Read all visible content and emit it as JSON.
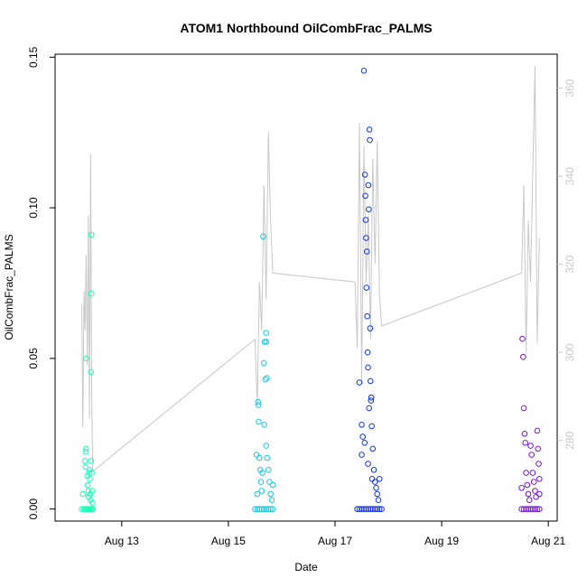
{
  "chart_data": {
    "type": "scatter",
    "title": "ATOM1 Northbound OilCombFrac_PALMS",
    "xlabel": "Date",
    "ylabel": "OilCombFrac_PALMS",
    "xlim": [
      "2008-08-11T18:00",
      "2008-08-21T04:00"
    ],
    "ylim": [
      -0.004,
      0.151
    ],
    "x_ticks": [
      "Aug 13",
      "Aug 15",
      "Aug 17",
      "Aug 19",
      "Aug 21"
    ],
    "y_ticks": [
      "0.00",
      "0.05",
      "0.10",
      "0.15"
    ],
    "y2_ticks": [
      "280",
      "300",
      "320",
      "340",
      "360"
    ],
    "y2lim": [
      261.7,
      367.7
    ],
    "grid": false,
    "series": [
      {
        "color": "#1BFFB8",
        "points": [
          [
            "2008-08-12T06:00",
            0.0
          ],
          [
            "2008-08-12T07:00",
            0.0
          ],
          [
            "2008-08-12T07:30",
            0.0
          ],
          [
            "2008-08-12T08:00",
            0.0
          ],
          [
            "2008-08-12T08:30",
            0.0
          ],
          [
            "2008-08-12T09:00",
            0.0
          ],
          [
            "2008-08-12T09:30",
            0.0
          ],
          [
            "2008-08-12T10:00",
            0.0
          ],
          [
            "2008-08-12T10:30",
            0.0
          ],
          [
            "2008-08-12T11:00",
            0.0
          ],
          [
            "2008-08-12T06:30",
            0.005
          ],
          [
            "2008-08-12T07:30",
            0.016
          ],
          [
            "2008-08-12T07:40",
            0.014
          ],
          [
            "2008-08-12T07:50",
            0.019
          ],
          [
            "2008-08-12T08:00",
            0.02
          ],
          [
            "2008-08-12T08:00",
            0.05
          ],
          [
            "2008-08-12T08:30",
            0.011
          ],
          [
            "2008-08-12T08:40",
            0.008
          ],
          [
            "2008-08-12T09:00",
            0.006
          ],
          [
            "2008-08-12T09:10",
            0.004
          ],
          [
            "2008-08-12T09:20",
            0.012
          ],
          [
            "2008-08-12T09:30",
            0.013
          ],
          [
            "2008-08-12T09:40",
            0.01
          ],
          [
            "2008-08-12T09:50",
            0.005
          ],
          [
            "2008-08-12T10:00",
            0.003
          ],
          [
            "2008-08-12T10:10",
            0.016
          ],
          [
            "2008-08-12T10:10",
            0.0455
          ],
          [
            "2008-08-12T10:20",
            0.0715
          ],
          [
            "2008-08-12T10:20",
            0.091
          ],
          [
            "2008-08-12T10:30",
            0.012
          ],
          [
            "2008-08-12T10:40",
            0.006
          ],
          [
            "2008-08-12T10:50",
            0.002
          ]
        ]
      },
      {
        "color": "#17C9EA",
        "points": [
          [
            "2008-08-15T12:00",
            0.0
          ],
          [
            "2008-08-15T13:00",
            0.0
          ],
          [
            "2008-08-15T14:00",
            0.0
          ],
          [
            "2008-08-15T15:00",
            0.0
          ],
          [
            "2008-08-15T16:00",
            0.0
          ],
          [
            "2008-08-15T17:00",
            0.0
          ],
          [
            "2008-08-15T18:00",
            0.0
          ],
          [
            "2008-08-15T19:00",
            0.0
          ],
          [
            "2008-08-15T20:00",
            0.0
          ],
          [
            "2008-08-15T12:40",
            0.018
          ],
          [
            "2008-08-15T13:00",
            0.005
          ],
          [
            "2008-08-15T13:20",
            0.0355
          ],
          [
            "2008-08-15T13:30",
            0.0345
          ],
          [
            "2008-08-15T13:40",
            0.029
          ],
          [
            "2008-08-15T14:00",
            0.017
          ],
          [
            "2008-08-15T14:20",
            0.013
          ],
          [
            "2008-08-15T14:40",
            0.009
          ],
          [
            "2008-08-15T15:00",
            0.006
          ],
          [
            "2008-08-15T15:20",
            0.012
          ],
          [
            "2008-08-15T15:40",
            0.0905
          ],
          [
            "2008-08-15T16:00",
            0.0485
          ],
          [
            "2008-08-15T16:10",
            0.028
          ],
          [
            "2008-08-15T16:20",
            0.0555
          ],
          [
            "2008-08-15T16:40",
            0.043
          ],
          [
            "2008-08-15T17:00",
            0.0585
          ],
          [
            "2008-08-15T17:00",
            0.0555
          ],
          [
            "2008-08-15T17:20",
            0.0435
          ],
          [
            "2008-08-15T17:00",
            0.021
          ],
          [
            "2008-08-15T17:30",
            0.017
          ],
          [
            "2008-08-15T18:00",
            0.013
          ],
          [
            "2008-08-15T18:30",
            0.009
          ],
          [
            "2008-08-15T19:00",
            0.005
          ],
          [
            "2008-08-15T19:30",
            0.003
          ],
          [
            "2008-08-15T20:00",
            0.008
          ]
        ]
      },
      {
        "color": "#1436E6",
        "points": [
          [
            "2008-08-17T10:00",
            0.0
          ],
          [
            "2008-08-17T11:00",
            0.0
          ],
          [
            "2008-08-17T12:00",
            0.0
          ],
          [
            "2008-08-17T13:00",
            0.0
          ],
          [
            "2008-08-17T14:00",
            0.0
          ],
          [
            "2008-08-17T15:00",
            0.0
          ],
          [
            "2008-08-17T16:00",
            0.0
          ],
          [
            "2008-08-17T17:00",
            0.0
          ],
          [
            "2008-08-17T18:00",
            0.0
          ],
          [
            "2008-08-17T19:00",
            0.0
          ],
          [
            "2008-08-17T20:00",
            0.0
          ],
          [
            "2008-08-17T21:00",
            0.0
          ],
          [
            "2008-08-17T11:00",
            0.042
          ],
          [
            "2008-08-17T12:00",
            0.028
          ],
          [
            "2008-08-17T12:30",
            0.024
          ],
          [
            "2008-08-17T13:00",
            0.1455
          ],
          [
            "2008-08-17T13:30",
            0.111
          ],
          [
            "2008-08-17T13:40",
            0.104
          ],
          [
            "2008-08-17T13:50",
            0.096
          ],
          [
            "2008-08-17T14:00",
            0.09
          ],
          [
            "2008-08-17T14:10",
            0.0735
          ],
          [
            "2008-08-17T14:20",
            0.0855
          ],
          [
            "2008-08-17T14:30",
            0.064
          ],
          [
            "2008-08-17T14:40",
            0.052
          ],
          [
            "2008-08-17T14:50",
            0.047
          ],
          [
            "2008-08-17T15:00",
            0.1075
          ],
          [
            "2008-08-17T15:10",
            0.0995
          ],
          [
            "2008-08-17T15:20",
            0.0335
          ],
          [
            "2008-08-17T15:30",
            0.126
          ],
          [
            "2008-08-17T15:40",
            0.1225
          ],
          [
            "2008-08-17T15:50",
            0.06
          ],
          [
            "2008-08-17T16:00",
            0.0425
          ],
          [
            "2008-08-17T16:10",
            0.036
          ],
          [
            "2008-08-17T16:20",
            0.037
          ],
          [
            "2008-08-17T16:30",
            0.0275
          ],
          [
            "2008-08-17T17:00",
            0.02
          ],
          [
            "2008-08-17T17:30",
            0.013
          ],
          [
            "2008-08-17T18:00",
            0.009
          ],
          [
            "2008-08-17T18:30",
            0.007
          ],
          [
            "2008-08-17T19:00",
            0.005
          ],
          [
            "2008-08-17T19:30",
            0.003
          ],
          [
            "2008-08-17T20:00",
            0.01
          ],
          [
            "2008-08-17T12:00",
            0.018
          ],
          [
            "2008-08-17T13:20",
            0.022
          ],
          [
            "2008-08-17T14:50",
            0.015
          ],
          [
            "2008-08-17T16:40",
            0.01
          ]
        ]
      },
      {
        "color": "#7A17D8",
        "points": [
          [
            "2008-08-20T12:00",
            0.0
          ],
          [
            "2008-08-20T13:00",
            0.0
          ],
          [
            "2008-08-20T14:00",
            0.0
          ],
          [
            "2008-08-20T15:00",
            0.0
          ],
          [
            "2008-08-20T16:00",
            0.0
          ],
          [
            "2008-08-20T17:00",
            0.0
          ],
          [
            "2008-08-20T18:00",
            0.0
          ],
          [
            "2008-08-20T19:00",
            0.0
          ],
          [
            "2008-08-20T20:00",
            0.0
          ],
          [
            "2008-08-20T12:00",
            0.007
          ],
          [
            "2008-08-20T12:20",
            0.0565
          ],
          [
            "2008-08-20T12:40",
            0.0505
          ],
          [
            "2008-08-20T13:00",
            0.0335
          ],
          [
            "2008-08-20T13:20",
            0.025
          ],
          [
            "2008-08-20T13:40",
            0.022
          ],
          [
            "2008-08-20T14:00",
            0.012
          ],
          [
            "2008-08-20T14:30",
            0.008
          ],
          [
            "2008-08-20T15:00",
            0.005
          ],
          [
            "2008-08-20T15:30",
            0.003
          ],
          [
            "2008-08-20T16:00",
            0.021
          ],
          [
            "2008-08-20T16:30",
            0.018
          ],
          [
            "2008-08-20T17:00",
            0.012
          ],
          [
            "2008-08-20T17:30",
            0.009
          ],
          [
            "2008-08-20T18:00",
            0.006
          ],
          [
            "2008-08-20T18:30",
            0.004
          ],
          [
            "2008-08-20T19:00",
            0.026
          ],
          [
            "2008-08-20T19:20",
            0.02
          ],
          [
            "2008-08-20T19:40",
            0.015
          ],
          [
            "2008-08-20T20:00",
            0.01
          ],
          [
            "2008-08-20T20:00",
            0.005
          ]
        ]
      }
    ],
    "secondary_line": {
      "color": "#c8c8c8",
      "segments": [
        {
          "x": [
            "2008-08-12T06:00",
            "2008-08-12T06:30",
            "2008-08-12T07:00",
            "2008-08-12T07:30",
            "2008-08-12T08:00",
            "2008-08-12T08:30",
            "2008-08-12T09:00",
            "2008-08-12T09:30",
            "2008-08-12T10:00",
            "2008-08-12T10:30",
            "2008-08-12T11:00"
          ],
          "y": [
            311,
            283,
            314,
            305,
            322,
            297,
            331,
            285,
            345,
            288,
            273
          ]
        },
        {
          "x": [
            "2008-08-15T12:00",
            "2008-08-15T13:00",
            "2008-08-15T14:00",
            "2008-08-15T15:00",
            "2008-08-15T16:00",
            "2008-08-15T17:00",
            "2008-08-15T18:00",
            "2008-08-15T19:00",
            "2008-08-15T20:00"
          ],
          "y": [
            303,
            288,
            316,
            305,
            338,
            312,
            350,
            330,
            318
          ]
        },
        {
          "x": [
            "2008-08-17T09:00",
            "2008-08-17T10:00",
            "2008-08-17T11:00",
            "2008-08-17T12:00",
            "2008-08-17T13:00",
            "2008-08-17T14:00",
            "2008-08-17T15:00",
            "2008-08-17T16:00",
            "2008-08-17T17:00",
            "2008-08-17T18:00",
            "2008-08-17T19:00",
            "2008-08-17T20:00",
            "2008-08-17T21:00"
          ],
          "y": [
            316,
            301,
            352,
            293,
            347,
            316,
            331,
            303,
            344,
            320,
            348,
            313,
            306
          ]
        },
        {
          "x": [
            "2008-08-20T12:00",
            "2008-08-20T13:00",
            "2008-08-20T14:00",
            "2008-08-20T15:00",
            "2008-08-20T16:00",
            "2008-08-20T17:00",
            "2008-08-20T18:00",
            "2008-08-20T19:00",
            "2008-08-20T20:00"
          ],
          "y": [
            318,
            338,
            300,
            330,
            316,
            340,
            365,
            302,
            326
          ]
        }
      ]
    }
  }
}
